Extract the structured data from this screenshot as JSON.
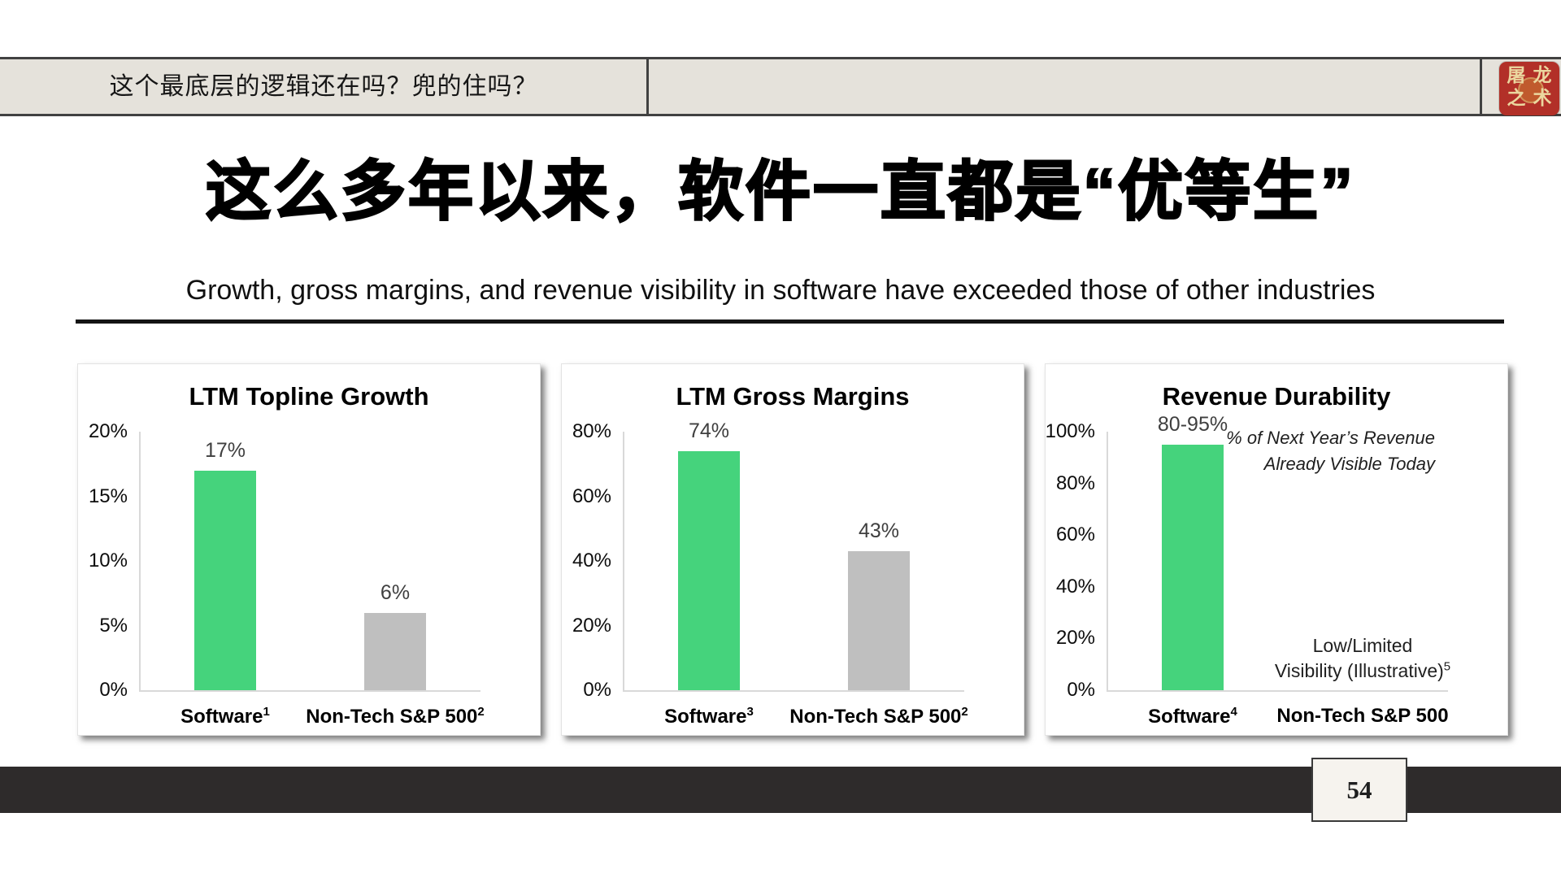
{
  "header": {
    "question": "这个最底层的逻辑还在吗？兜的住吗？",
    "logo_chars": [
      "屠",
      "龙",
      "之",
      "术"
    ]
  },
  "title": "这么多年以来，软件一直都是“优等生”",
  "subtitle": "Growth, gross margins, and revenue visibility in software have exceeded those of other industries",
  "footer": {
    "page_number": "54"
  },
  "colors": {
    "green": "#45d37c",
    "gray": "#bfbfbf",
    "header_bg": "#e5e2db",
    "footer_bar": "#2e2b2b",
    "value_label": "#3f3f3f"
  },
  "chart_data": [
    {
      "type": "bar",
      "title": "LTM Topline Growth",
      "ylabel": "",
      "ylim": [
        0,
        20
      ],
      "grid": false,
      "yticks": [
        "20%",
        "15%",
        "10%",
        "5%",
        "0%"
      ],
      "categories": [
        {
          "label": "Software",
          "sup": "1"
        },
        {
          "label": "Non-Tech S&P 500",
          "sup": "2"
        }
      ],
      "bars": [
        {
          "value": 17,
          "label": "17%",
          "color": "green"
        },
        {
          "value": 6,
          "label": "6%",
          "color": "gray"
        }
      ]
    },
    {
      "type": "bar",
      "title": "LTM Gross Margins",
      "ylabel": "",
      "ylim": [
        0,
        80
      ],
      "grid": false,
      "yticks": [
        "80%",
        "60%",
        "40%",
        "20%",
        "0%"
      ],
      "categories": [
        {
          "label": "Software",
          "sup": "3"
        },
        {
          "label": "Non-Tech S&P 500",
          "sup": "2"
        }
      ],
      "bars": [
        {
          "value": 74,
          "label": "74%",
          "color": "green"
        },
        {
          "value": 43,
          "label": "43%",
          "color": "gray"
        }
      ]
    },
    {
      "type": "bar",
      "title": "Revenue Durability",
      "ylabel": "",
      "ylim": [
        0,
        100
      ],
      "grid": false,
      "yticks": [
        "100%",
        "80%",
        "60%",
        "40%",
        "20%",
        "0%"
      ],
      "categories": [
        {
          "label": "Software",
          "sup": "4"
        },
        {
          "label": "Non-Tech S&P 500",
          "sup": ""
        }
      ],
      "bars": [
        {
          "value": 95,
          "label": "80-95%",
          "color": "green"
        }
      ],
      "annotations": {
        "top_right": {
          "lines": [
            "% of Next Year’s Revenue",
            "Already Visible Today"
          ]
        },
        "bottom_right": {
          "lines": [
            "Low/Limited",
            "Visibility (Illustrative)"
          ],
          "sup": "5"
        }
      }
    }
  ]
}
